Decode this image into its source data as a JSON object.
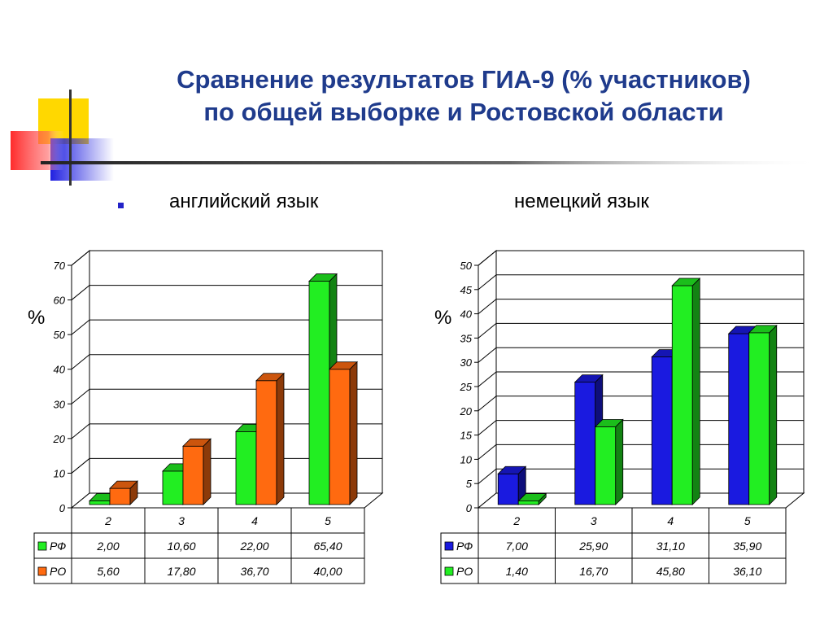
{
  "title": {
    "line1": "Сравнение результатов ГИА-9 (% участников)",
    "line2": "по общей выборке и Ростовской области"
  },
  "labels": {
    "left": "английский язык",
    "right": "немецкий язык"
  },
  "chart_data": [
    {
      "type": "bar",
      "subject": "английский язык",
      "ylabel": "%",
      "ylim": [
        0,
        70
      ],
      "yticks": [
        "0",
        "10",
        "20",
        "30",
        "40",
        "50",
        "60",
        "70"
      ],
      "categories": [
        "2",
        "3",
        "4",
        "5"
      ],
      "series": [
        {
          "name": "РФ",
          "color": "#22ee22",
          "values": [
            2.0,
            10.6,
            22.0,
            65.4
          ],
          "labels": [
            "2,00",
            "10,60",
            "22,00",
            "65,40"
          ]
        },
        {
          "name": "РО",
          "color": "#ff6a10",
          "values": [
            5.6,
            17.8,
            36.7,
            40.0
          ],
          "labels": [
            "5,60",
            "17,80",
            "36,70",
            "40,00"
          ]
        }
      ],
      "grid": true,
      "legend": "data-table"
    },
    {
      "type": "bar",
      "subject": "немецкий язык",
      "ylabel": "%",
      "ylim": [
        0,
        50
      ],
      "yticks": [
        "0",
        "5",
        "10",
        "15",
        "20",
        "25",
        "30",
        "35",
        "40",
        "45",
        "50"
      ],
      "categories": [
        "2",
        "3",
        "4",
        "5"
      ],
      "series": [
        {
          "name": "РФ",
          "color": "#1a1ae0",
          "values": [
            7.0,
            25.9,
            31.1,
            35.9
          ],
          "labels": [
            "7,00",
            "25,90",
            "31,10",
            "35,90"
          ]
        },
        {
          "name": "РО",
          "color": "#22ee22",
          "values": [
            1.4,
            16.7,
            45.8,
            36.1
          ],
          "labels": [
            "1,40",
            "16,70",
            "45,80",
            "36,10"
          ]
        }
      ],
      "grid": true,
      "legend": "data-table"
    }
  ]
}
